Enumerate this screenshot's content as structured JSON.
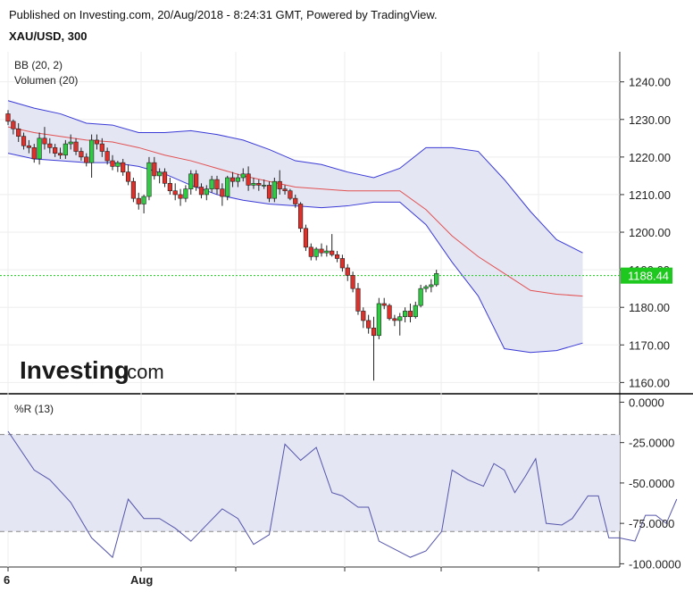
{
  "header": {
    "published": "Published on Investing.com, 20/Aug/2018 - 8:24:31 GMT, Powered by TradingView.",
    "symbol": "XAU/USD, 300"
  },
  "logo": {
    "main": "Investing",
    "sub": ".com"
  },
  "colors": {
    "up": "#2ecc40",
    "down": "#e0302a",
    "band_fill": "#e4e6f4",
    "band_line": "#3a3ad6",
    "mid_line": "#e25050",
    "wr_line": "#5555aa",
    "last_price": "#1ec81e"
  },
  "chart_data": [
    {
      "type": "candlestick",
      "indicators": [
        "BB (20, 2)",
        "Volumen (20)"
      ],
      "last_price_label": "1188.44",
      "last_price": 1188.44,
      "ylim": [
        1157,
        1248
      ],
      "yticks": [
        1240,
        1230,
        1220,
        1210,
        1200,
        1190,
        1180,
        1170,
        1160
      ],
      "ytick_labels": [
        "1240.00",
        "1230.00",
        "1220.00",
        "1210.00",
        "1200.00",
        "1190.00",
        "1180.00",
        "1170.00",
        "1160.00"
      ],
      "xtick_labels": [
        "6",
        "Aug"
      ],
      "candles": [
        [
          1231.5,
          1232.5,
          1228.5,
          1229.5
        ],
        [
          1229.5,
          1230.0,
          1226.0,
          1227.5
        ],
        [
          1227.5,
          1229.0,
          1224.0,
          1225.5
        ],
        [
          1225.5,
          1226.5,
          1222.0,
          1223.0
        ],
        [
          1223.0,
          1224.5,
          1221.0,
          1222.5
        ],
        [
          1222.5,
          1223.5,
          1218.5,
          1219.5
        ],
        [
          1219.5,
          1226.5,
          1218.0,
          1225.0
        ],
        [
          1225.0,
          1228.0,
          1222.0,
          1223.5
        ],
        [
          1223.5,
          1225.0,
          1221.0,
          1222.5
        ],
        [
          1222.5,
          1223.5,
          1220.0,
          1221.0
        ],
        [
          1221.0,
          1222.5,
          1219.5,
          1220.5
        ],
        [
          1220.5,
          1224.5,
          1219.5,
          1223.5
        ],
        [
          1223.5,
          1226.0,
          1222.0,
          1224.0
        ],
        [
          1224.0,
          1225.0,
          1220.5,
          1221.5
        ],
        [
          1221.5,
          1222.5,
          1219.0,
          1220.0
        ],
        [
          1220.0,
          1221.0,
          1217.5,
          1218.5
        ],
        [
          1218.5,
          1226.0,
          1214.5,
          1224.5
        ],
        [
          1224.5,
          1226.0,
          1222.0,
          1223.5
        ],
        [
          1223.5,
          1225.0,
          1220.0,
          1221.5
        ],
        [
          1221.5,
          1222.5,
          1218.0,
          1219.0
        ],
        [
          1219.0,
          1220.5,
          1216.5,
          1217.5
        ],
        [
          1217.5,
          1219.0,
          1216.0,
          1218.5
        ],
        [
          1218.5,
          1219.5,
          1215.0,
          1216.0
        ],
        [
          1216.0,
          1218.0,
          1212.5,
          1213.5
        ],
        [
          1213.5,
          1214.5,
          1208.0,
          1209.0
        ],
        [
          1209.0,
          1210.5,
          1206.0,
          1207.5
        ],
        [
          1207.5,
          1210.0,
          1205.0,
          1209.5
        ],
        [
          1209.5,
          1220.0,
          1208.5,
          1218.5
        ],
        [
          1218.5,
          1220.0,
          1214.0,
          1215.0
        ],
        [
          1215.0,
          1217.0,
          1213.0,
          1216.0
        ],
        [
          1216.0,
          1217.0,
          1212.0,
          1213.0
        ],
        [
          1213.0,
          1214.5,
          1210.0,
          1211.0
        ],
        [
          1211.0,
          1213.0,
          1208.5,
          1210.0
        ],
        [
          1210.0,
          1211.5,
          1207.0,
          1209.0
        ],
        [
          1209.0,
          1212.5,
          1208.0,
          1211.5
        ],
        [
          1211.5,
          1216.5,
          1210.0,
          1215.5
        ],
        [
          1215.5,
          1216.5,
          1211.0,
          1212.0
        ],
        [
          1212.0,
          1213.0,
          1209.0,
          1210.0
        ],
        [
          1210.0,
          1212.5,
          1208.5,
          1211.5
        ],
        [
          1211.5,
          1215.0,
          1210.5,
          1214.0
        ],
        [
          1214.0,
          1215.0,
          1210.0,
          1211.5
        ],
        [
          1211.5,
          1213.0,
          1207.0,
          1209.5
        ],
        [
          1209.5,
          1215.0,
          1208.5,
          1214.5
        ],
        [
          1214.5,
          1216.0,
          1212.0,
          1213.5
        ],
        [
          1213.5,
          1215.5,
          1212.0,
          1214.5
        ],
        [
          1214.5,
          1217.0,
          1213.5,
          1215.5
        ],
        [
          1215.5,
          1217.5,
          1211.0,
          1212.5
        ],
        [
          1212.5,
          1214.5,
          1211.5,
          1213.0
        ],
        [
          1213.0,
          1214.0,
          1211.0,
          1212.5
        ],
        [
          1212.5,
          1214.0,
          1211.5,
          1212.5
        ],
        [
          1212.5,
          1213.5,
          1208.0,
          1209.0
        ],
        [
          1209.0,
          1214.5,
          1208.0,
          1213.5
        ],
        [
          1213.5,
          1216.5,
          1210.0,
          1211.5
        ],
        [
          1211.5,
          1212.5,
          1210.0,
          1211.0
        ],
        [
          1211.0,
          1211.5,
          1208.5,
          1209.0
        ],
        [
          1209.0,
          1210.0,
          1206.5,
          1207.5
        ],
        [
          1207.5,
          1208.0,
          1200.0,
          1201.0
        ],
        [
          1201.0,
          1202.0,
          1195.0,
          1196.0
        ],
        [
          1196.0,
          1197.0,
          1192.5,
          1193.5
        ],
        [
          1193.5,
          1196.0,
          1192.5,
          1195.5
        ],
        [
          1195.5,
          1197.0,
          1193.5,
          1194.5
        ],
        [
          1194.5,
          1196.5,
          1193.5,
          1195.0
        ],
        [
          1195.0,
          1199.5,
          1193.5,
          1194.0
        ],
        [
          1194.0,
          1195.0,
          1192.0,
          1193.0
        ],
        [
          1193.0,
          1194.0,
          1189.5,
          1190.5
        ],
        [
          1190.5,
          1191.5,
          1187.0,
          1188.5
        ],
        [
          1188.5,
          1189.5,
          1184.0,
          1185.0
        ],
        [
          1185.0,
          1186.5,
          1178.0,
          1179.0
        ],
        [
          1179.0,
          1180.0,
          1174.5,
          1176.5
        ],
        [
          1176.5,
          1178.0,
          1173.0,
          1174.5
        ],
        [
          1174.5,
          1177.5,
          1160.5,
          1172.5
        ],
        [
          1172.5,
          1182.5,
          1171.5,
          1181.0
        ],
        [
          1181.0,
          1182.5,
          1179.5,
          1180.5
        ],
        [
          1180.5,
          1181.0,
          1176.5,
          1177.0
        ],
        [
          1177.0,
          1178.0,
          1175.0,
          1176.5
        ],
        [
          1176.5,
          1178.5,
          1172.5,
          1177.5
        ],
        [
          1177.5,
          1180.0,
          1176.0,
          1179.0
        ],
        [
          1179.0,
          1181.0,
          1176.0,
          1177.5
        ],
        [
          1177.5,
          1181.5,
          1177.0,
          1180.5
        ],
        [
          1180.5,
          1186.0,
          1180.0,
          1185.0
        ],
        [
          1185.0,
          1186.0,
          1184.0,
          1185.5
        ],
        [
          1185.5,
          1187.5,
          1184.0,
          1186.0
        ],
        [
          1186.0,
          1190.0,
          1185.5,
          1189.0
        ]
      ],
      "bb_upper": [
        [
          0,
          1235.0
        ],
        [
          5,
          1233.0
        ],
        [
          10,
          1231.5
        ],
        [
          15,
          1229.0
        ],
        [
          20,
          1228.5
        ],
        [
          25,
          1226.5
        ],
        [
          30,
          1226.5
        ],
        [
          35,
          1227.0
        ],
        [
          40,
          1226.0
        ],
        [
          45,
          1224.5
        ],
        [
          50,
          1222.0
        ],
        [
          55,
          1219.0
        ],
        [
          60,
          1218.0
        ],
        [
          65,
          1216.0
        ],
        [
          70,
          1214.5
        ],
        [
          75,
          1217.0
        ],
        [
          80,
          1222.5
        ],
        [
          85,
          1222.5
        ],
        [
          90,
          1221.5
        ],
        [
          95,
          1214.0
        ],
        [
          100,
          1205.5
        ],
        [
          105,
          1198.0
        ],
        [
          110,
          1194.5
        ]
      ],
      "bb_lower": [
        [
          0,
          1221.0
        ],
        [
          5,
          1219.5
        ],
        [
          10,
          1219.0
        ],
        [
          15,
          1218.5
        ],
        [
          20,
          1218.5
        ],
        [
          25,
          1217.5
        ],
        [
          30,
          1215.5
        ],
        [
          35,
          1212.5
        ],
        [
          40,
          1210.0
        ],
        [
          45,
          1208.5
        ],
        [
          50,
          1207.5
        ],
        [
          55,
          1207.0
        ],
        [
          60,
          1206.5
        ],
        [
          65,
          1207.0
        ],
        [
          70,
          1208.0
        ],
        [
          75,
          1208.0
        ],
        [
          80,
          1202.0
        ],
        [
          85,
          1192.0
        ],
        [
          90,
          1183.0
        ],
        [
          95,
          1169.0
        ],
        [
          100,
          1168.0
        ],
        [
          105,
          1168.5
        ],
        [
          110,
          1170.5
        ]
      ],
      "bb_basis": [
        [
          0,
          1228.0
        ],
        [
          5,
          1226.5
        ],
        [
          10,
          1225.5
        ],
        [
          15,
          1224.5
        ],
        [
          20,
          1224.0
        ],
        [
          25,
          1222.5
        ],
        [
          30,
          1220.5
        ],
        [
          35,
          1219.0
        ],
        [
          40,
          1217.0
        ],
        [
          45,
          1215.0
        ],
        [
          50,
          1213.5
        ],
        [
          55,
          1212.0
        ],
        [
          60,
          1211.5
        ],
        [
          65,
          1211.0
        ],
        [
          70,
          1211.0
        ],
        [
          75,
          1211.0
        ],
        [
          80,
          1206.0
        ],
        [
          85,
          1199.0
        ],
        [
          90,
          1193.5
        ],
        [
          95,
          1189.0
        ],
        [
          100,
          1184.5
        ],
        [
          105,
          1183.5
        ],
        [
          110,
          1183.0
        ]
      ]
    },
    {
      "type": "line",
      "indicator": "%R (13)",
      "ylim": [
        -102,
        3
      ],
      "yticks": [
        0,
        -25,
        -50,
        -75,
        -100
      ],
      "ytick_labels": [
        "0.0000",
        "-25.0000",
        "-50.0000",
        "-75.0000",
        "-100.0000"
      ],
      "overbought": -20,
      "oversold": -80,
      "values": [
        [
          0,
          -18
        ],
        [
          5,
          -42
        ],
        [
          8,
          -48
        ],
        [
          12,
          -62
        ],
        [
          16,
          -84
        ],
        [
          20,
          -96
        ],
        [
          23,
          -60
        ],
        [
          26,
          -72
        ],
        [
          29,
          -72
        ],
        [
          32,
          -78
        ],
        [
          35,
          -86
        ],
        [
          38,
          -76
        ],
        [
          41,
          -66
        ],
        [
          44,
          -72
        ],
        [
          47,
          -88
        ],
        [
          50,
          -82
        ],
        [
          53,
          -26
        ],
        [
          56,
          -36
        ],
        [
          59,
          -28
        ],
        [
          62,
          -56
        ],
        [
          64,
          -58
        ],
        [
          67,
          -65
        ],
        [
          69,
          -65
        ],
        [
          71,
          -86
        ],
        [
          74,
          -91
        ],
        [
          77,
          -96
        ],
        [
          80,
          -92
        ],
        [
          83,
          -80
        ],
        [
          85,
          -42
        ],
        [
          88,
          -48
        ],
        [
          91,
          -52
        ],
        [
          93,
          -38
        ],
        [
          95,
          -42
        ],
        [
          97,
          -56
        ],
        [
          99,
          -46
        ],
        [
          101,
          -35
        ],
        [
          103,
          -75
        ],
        [
          106,
          -76
        ],
        [
          108,
          -72
        ],
        [
          111,
          -58
        ],
        [
          113,
          -58
        ],
        [
          115,
          -84
        ],
        [
          117,
          -84
        ],
        [
          120,
          -86
        ],
        [
          122,
          -70
        ],
        [
          124,
          -70
        ],
        [
          126,
          -75
        ],
        [
          128,
          -60
        ]
      ]
    }
  ]
}
